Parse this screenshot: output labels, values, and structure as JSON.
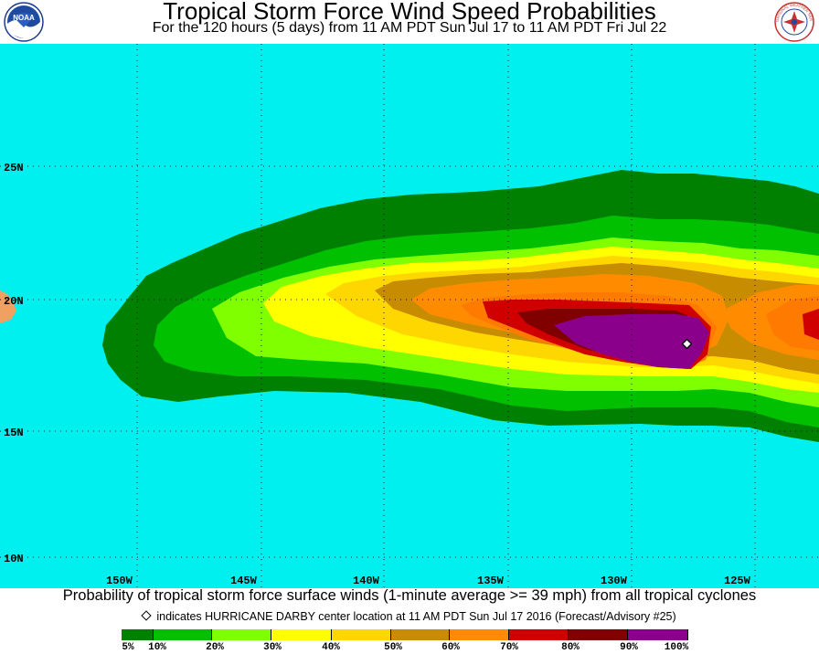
{
  "header": {
    "title": "Tropical Storm Force Wind Speed Probabilities",
    "subtitle": "For the 120 hours (5 days) from 11 AM PDT Sun Jul 17 to 11 AM PDT Fri Jul 22",
    "left_logo": {
      "text": "NOAA",
      "icon": "noaa-logo"
    },
    "right_logo": {
      "text": "NATIONAL WEATHER SERVICE",
      "icon": "nws-logo"
    }
  },
  "map": {
    "ocean_color": "#00f0f0",
    "land_color": "#f0a060",
    "lat_labels": [
      "25N",
      "20N",
      "15N",
      "10N"
    ],
    "lon_labels": [
      "150W",
      "145W",
      "140W",
      "135W",
      "130W",
      "125W"
    ],
    "storm_marker": {
      "name": "HURRICANE DARBY",
      "icon": "diamond-marker"
    }
  },
  "footer": {
    "caption": "Probability of tropical storm force surface winds (1-minute average >= 39 mph) from all tropical cyclones",
    "center_note": "indicates HURRICANE DARBY center location at 11 AM PDT Sun Jul 17 2016 (Forecast/Advisory #25)"
  },
  "legend": {
    "labels": [
      "5%",
      "10%",
      "20%",
      "30%",
      "40%",
      "50%",
      "60%",
      "70%",
      "80%",
      "90%",
      "100%"
    ],
    "colors": [
      "#008000",
      "#00c000",
      "#80ff00",
      "#ffff00",
      "#ffd700",
      "#c88c00",
      "#ff8c00",
      "#d00000",
      "#800000",
      "#8b008b"
    ]
  }
}
